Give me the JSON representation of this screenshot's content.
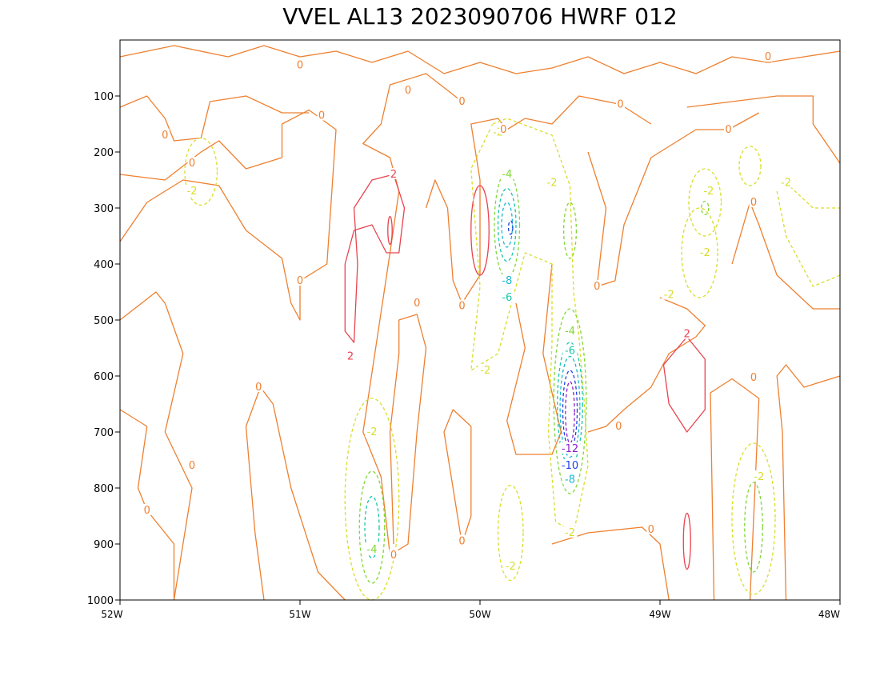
{
  "chart_data": {
    "type": "contour",
    "title": "VVEL AL13 2023090706 HWRF 012",
    "x_ticks": [
      "52W",
      "51W",
      "50W",
      "49W",
      "48W"
    ],
    "x_range_lon": [
      -52,
      -48
    ],
    "y_ticks": [
      "100",
      "200",
      "300",
      "400",
      "500",
      "600",
      "700",
      "800",
      "900",
      "1000"
    ],
    "y_range_hpa": [
      0,
      1000
    ],
    "y_axis": "pressure (hPa), increasing downward",
    "grid": false,
    "legend": "none",
    "contour_interval": 2,
    "contour_levels": [
      {
        "value": 2,
        "color": "#e8434f",
        "style": "solid"
      },
      {
        "value": 0,
        "color": "#ee8030",
        "style": "solid"
      },
      {
        "value": -2,
        "color": "#d8de28",
        "style": "dashed"
      },
      {
        "value": -4,
        "color": "#80d838",
        "style": "dashed"
      },
      {
        "value": -6,
        "color": "#18c8a8",
        "style": "dashed"
      },
      {
        "value": -8,
        "color": "#18b8d0",
        "style": "dashed"
      },
      {
        "value": -10,
        "color": "#2040e8",
        "style": "dashed"
      },
      {
        "value": -12,
        "color": "#8820c8",
        "style": "dashed"
      }
    ],
    "features": [
      {
        "kind": "min",
        "lon": -49.5,
        "p": 680,
        "value": -12,
        "note": "strongest upward motion, mid-column core"
      },
      {
        "kind": "min",
        "lon": -49.85,
        "p": 330,
        "value": -8,
        "note": "upper-level upward motion core"
      },
      {
        "kind": "min",
        "lon": -50.6,
        "p": 860,
        "value": -4,
        "note": "low-level updraft"
      },
      {
        "kind": "min",
        "lon": -48.5,
        "p": 860,
        "value": -2,
        "note": "low-level updraft"
      },
      {
        "kind": "max",
        "lon": -50.5,
        "p": 340,
        "value": 2,
        "note": "descent"
      },
      {
        "kind": "max",
        "lon": -48.85,
        "p": 620,
        "value": 2,
        "note": "descent"
      }
    ],
    "labels": [
      {
        "text": "-2",
        "lon": -51.6,
        "p": 270
      },
      {
        "text": "-2",
        "lon": -49.9,
        "p": 165
      },
      {
        "text": "-4",
        "lon": -49.85,
        "p": 240
      },
      {
        "text": "-2",
        "lon": -49.6,
        "p": 255
      },
      {
        "text": "-8",
        "lon": -49.85,
        "p": 430
      },
      {
        "text": "-6",
        "lon": -49.85,
        "p": 460
      },
      {
        "text": "-2",
        "lon": -49.97,
        "p": 590
      },
      {
        "text": "-2",
        "lon": -48.73,
        "p": 270
      },
      {
        "text": "-2",
        "lon": -48.75,
        "p": 380
      },
      {
        "text": "-2",
        "lon": -48.95,
        "p": 455
      },
      {
        "text": "-2",
        "lon": -48.3,
        "p": 255
      },
      {
        "text": "-4",
        "lon": -49.5,
        "p": 520
      },
      {
        "text": "-6",
        "lon": -49.5,
        "p": 555
      },
      {
        "text": "-12",
        "lon": -49.5,
        "p": 730
      },
      {
        "text": "-10",
        "lon": -49.5,
        "p": 760
      },
      {
        "text": "-8",
        "lon": -49.5,
        "p": 785
      },
      {
        "text": "-2",
        "lon": -49.5,
        "p": 880
      },
      {
        "text": "-2",
        "lon": -49.83,
        "p": 940
      },
      {
        "text": "-2",
        "lon": -50.6,
        "p": 700
      },
      {
        "text": "-4",
        "lon": -50.6,
        "p": 910
      },
      {
        "text": "-2",
        "lon": -48.45,
        "p": 780
      },
      {
        "text": "2",
        "lon": -50.48,
        "p": 240
      },
      {
        "text": "2",
        "lon": -50.72,
        "p": 565
      },
      {
        "text": "2",
        "lon": -48.85,
        "p": 525
      },
      {
        "text": "0",
        "lon": -51.75,
        "p": 170
      },
      {
        "text": "0",
        "lon": -51.6,
        "p": 220
      },
      {
        "text": "0",
        "lon": -51.0,
        "p": 45
      },
      {
        "text": "0",
        "lon": -50.4,
        "p": 90
      },
      {
        "text": "0",
        "lon": -50.1,
        "p": 110
      },
      {
        "text": "0",
        "lon": -50.88,
        "p": 135
      },
      {
        "text": "0",
        "lon": -49.87,
        "p": 160
      },
      {
        "text": "0",
        "lon": -49.22,
        "p": 115
      },
      {
        "text": "0",
        "lon": -48.62,
        "p": 160
      },
      {
        "text": "0",
        "lon": -48.4,
        "p": 30
      },
      {
        "text": "0",
        "lon": -48.48,
        "p": 290
      },
      {
        "text": "0",
        "lon": -51.0,
        "p": 430
      },
      {
        "text": "0",
        "lon": -50.35,
        "p": 470
      },
      {
        "text": "0",
        "lon": -50.1,
        "p": 475
      },
      {
        "text": "0",
        "lon": -49.35,
        "p": 440
      },
      {
        "text": "0",
        "lon": -51.23,
        "p": 620
      },
      {
        "text": "0",
        "lon": -51.6,
        "p": 760
      },
      {
        "text": "0",
        "lon": -51.85,
        "p": 840
      },
      {
        "text": "0",
        "lon": -50.1,
        "p": 895
      },
      {
        "text": "0",
        "lon": -50.48,
        "p": 920
      },
      {
        "text": "0",
        "lon": -49.23,
        "p": 690
      },
      {
        "text": "0",
        "lon": -49.05,
        "p": 874
      },
      {
        "text": "0",
        "lon": -48.48,
        "p": 603
      }
    ]
  }
}
